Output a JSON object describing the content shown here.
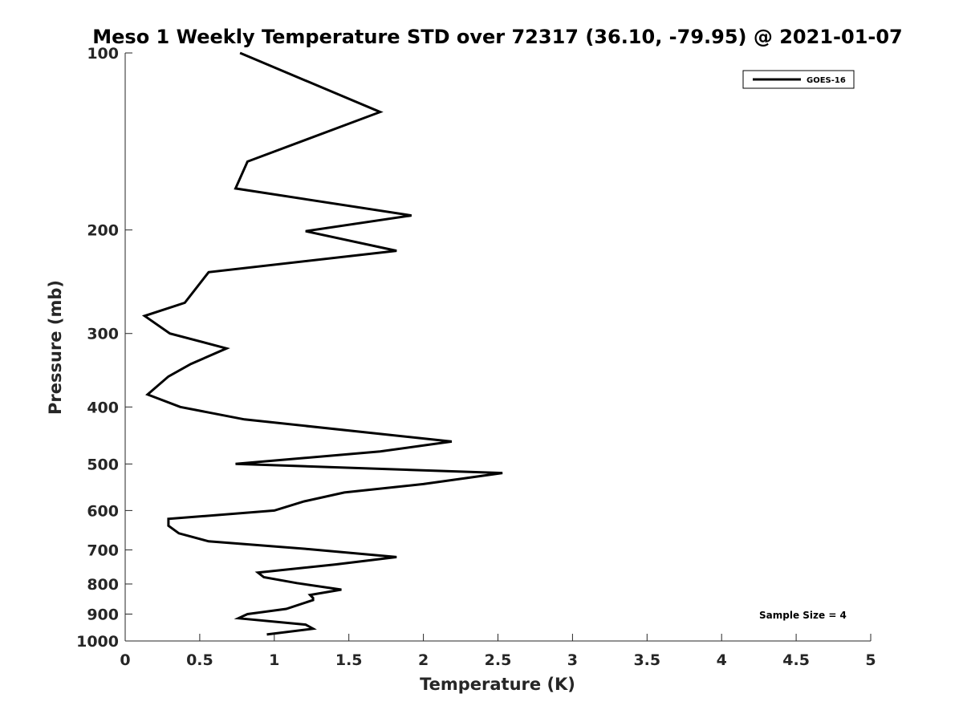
{
  "chart_data": {
    "type": "line",
    "title": "Meso 1 Weekly Temperature STD over 72317 (36.10, -79.95) @ 2021-01-07",
    "xlabel": "Temperature (K)",
    "ylabel": "Pressure (mb)",
    "xlim": [
      0,
      5
    ],
    "ylim": [
      1000,
      100
    ],
    "y_scale": "log",
    "x_ticks": [
      "0",
      "0.5",
      "1",
      "1.5",
      "2",
      "2.5",
      "3",
      "3.5",
      "4",
      "4.5",
      "5"
    ],
    "y_ticks": [
      "100",
      "200",
      "300",
      "400",
      "500",
      "600",
      "700",
      "800",
      "900",
      "1000"
    ],
    "grid": false,
    "legend": {
      "position": "top-right",
      "entries": [
        "GOES-16"
      ]
    },
    "annotation": "Sample Size = 4",
    "series": [
      {
        "name": "GOES-16",
        "color": "#000000",
        "points": [
          [
            0.77,
            100
          ],
          [
            1.71,
            126
          ],
          [
            0.82,
            153
          ],
          [
            0.74,
            170
          ],
          [
            1.92,
            189
          ],
          [
            1.21,
            201
          ],
          [
            1.82,
            217
          ],
          [
            0.56,
            236
          ],
          [
            0.4,
            266
          ],
          [
            0.13,
            280
          ],
          [
            0.3,
            300
          ],
          [
            0.68,
            318
          ],
          [
            0.44,
            338
          ],
          [
            0.29,
            355
          ],
          [
            0.15,
            381
          ],
          [
            0.37,
            400
          ],
          [
            0.8,
            420
          ],
          [
            1.73,
            445
          ],
          [
            2.19,
            458
          ],
          [
            1.71,
            476
          ],
          [
            0.74,
            500
          ],
          [
            2.53,
            518
          ],
          [
            2.0,
            541
          ],
          [
            1.47,
            559
          ],
          [
            1.2,
            579
          ],
          [
            1.0,
            600
          ],
          [
            0.29,
            620
          ],
          [
            0.29,
            637
          ],
          [
            0.36,
            656
          ],
          [
            0.56,
            677
          ],
          [
            1.23,
            698
          ],
          [
            1.82,
            720
          ],
          [
            1.41,
            741
          ],
          [
            0.89,
            765
          ],
          [
            0.93,
            779
          ],
          [
            1.15,
            797
          ],
          [
            1.45,
            818
          ],
          [
            1.24,
            835
          ],
          [
            1.26,
            845
          ],
          [
            1.26,
            852
          ],
          [
            1.08,
            882
          ],
          [
            0.82,
            900
          ],
          [
            0.76,
            915
          ],
          [
            1.21,
            938
          ],
          [
            1.26,
            953
          ],
          [
            0.95,
            975
          ]
        ]
      }
    ]
  }
}
